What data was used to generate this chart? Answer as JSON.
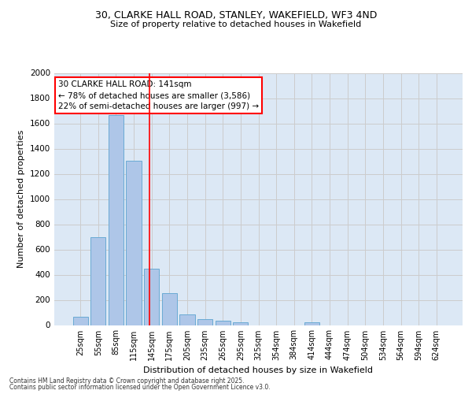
{
  "title_line1": "30, CLARKE HALL ROAD, STANLEY, WAKEFIELD, WF3 4ND",
  "title_line2": "Size of property relative to detached houses in Wakefield",
  "xlabel": "Distribution of detached houses by size in Wakefield",
  "ylabel": "Number of detached properties",
  "categories": [
    "25sqm",
    "55sqm",
    "85sqm",
    "115sqm",
    "145sqm",
    "175sqm",
    "205sqm",
    "235sqm",
    "265sqm",
    "295sqm",
    "325sqm",
    "354sqm",
    "384sqm",
    "414sqm",
    "444sqm",
    "474sqm",
    "504sqm",
    "534sqm",
    "564sqm",
    "594sqm",
    "624sqm"
  ],
  "values": [
    65,
    695,
    1665,
    1305,
    445,
    255,
    85,
    50,
    35,
    25,
    0,
    0,
    0,
    20,
    0,
    0,
    0,
    0,
    0,
    0,
    0
  ],
  "bar_color": "#aec6e8",
  "bar_edge_color": "#6aaad4",
  "vline_color": "red",
  "vline_x": 3.87,
  "annotation_title": "30 CLARKE HALL ROAD: 141sqm",
  "annotation_line1": "← 78% of detached houses are smaller (3,586)",
  "annotation_line2": "22% of semi-detached houses are larger (997) →",
  "annotation_box_color": "white",
  "annotation_box_edge_color": "red",
  "ylim": [
    0,
    2000
  ],
  "yticks": [
    0,
    200,
    400,
    600,
    800,
    1000,
    1200,
    1400,
    1600,
    1800,
    2000
  ],
  "grid_color": "#cccccc",
  "background_color": "#dce8f5",
  "footer_line1": "Contains HM Land Registry data © Crown copyright and database right 2025.",
  "footer_line2": "Contains public sector information licensed under the Open Government Licence v3.0."
}
